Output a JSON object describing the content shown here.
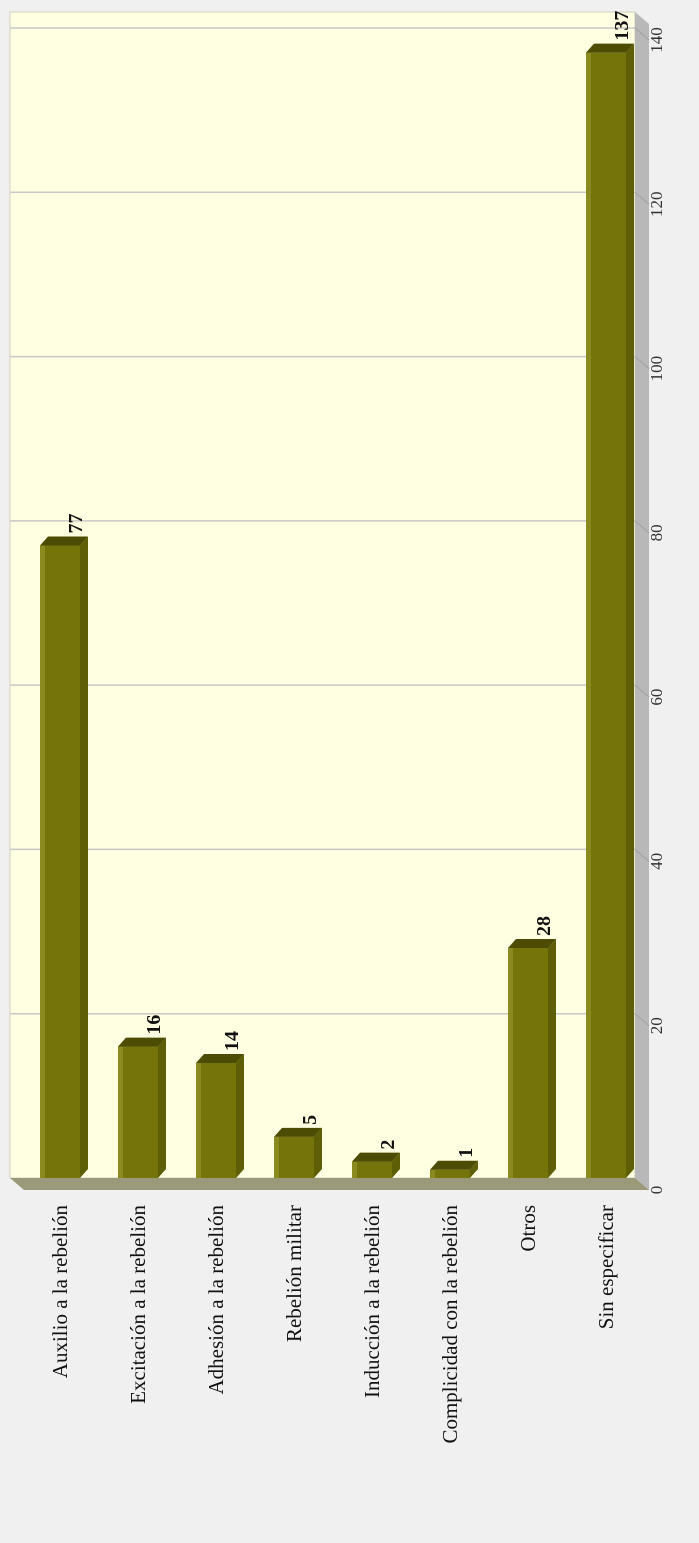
{
  "colors": {
    "plot_background": "#ffffe1",
    "page_background": "#f0f0f0",
    "bar_fill": "#74740a",
    "bar_top": "#4c4c04",
    "gridline": "#c8c8c8",
    "floor": "#9a9a7a"
  },
  "chart_data": {
    "type": "bar",
    "orientation": "horizontal, image rotated 90° clockwise",
    "categories": [
      "Auxilio a la rebelión",
      "Excitación a la rebelión",
      "Adhesión a la rebelión",
      "Rebelión militar",
      "Inducción a la rebelión",
      "Complicidad con la rebelión",
      "Otros",
      "Sin especificar"
    ],
    "values": [
      77,
      16,
      14,
      5,
      2,
      1,
      28,
      137
    ],
    "value_labels": [
      "77",
      "16",
      "14",
      "5",
      "2",
      "1",
      "28",
      "137"
    ],
    "ticks": [
      "0",
      "20",
      "40",
      "60",
      "80",
      "100",
      "120",
      "140"
    ],
    "tick_values": [
      0,
      20,
      40,
      60,
      80,
      100,
      120,
      140
    ],
    "xlim": [
      0,
      140
    ],
    "grid": true,
    "style": "3d",
    "title": "",
    "xlabel": "",
    "ylabel": ""
  }
}
